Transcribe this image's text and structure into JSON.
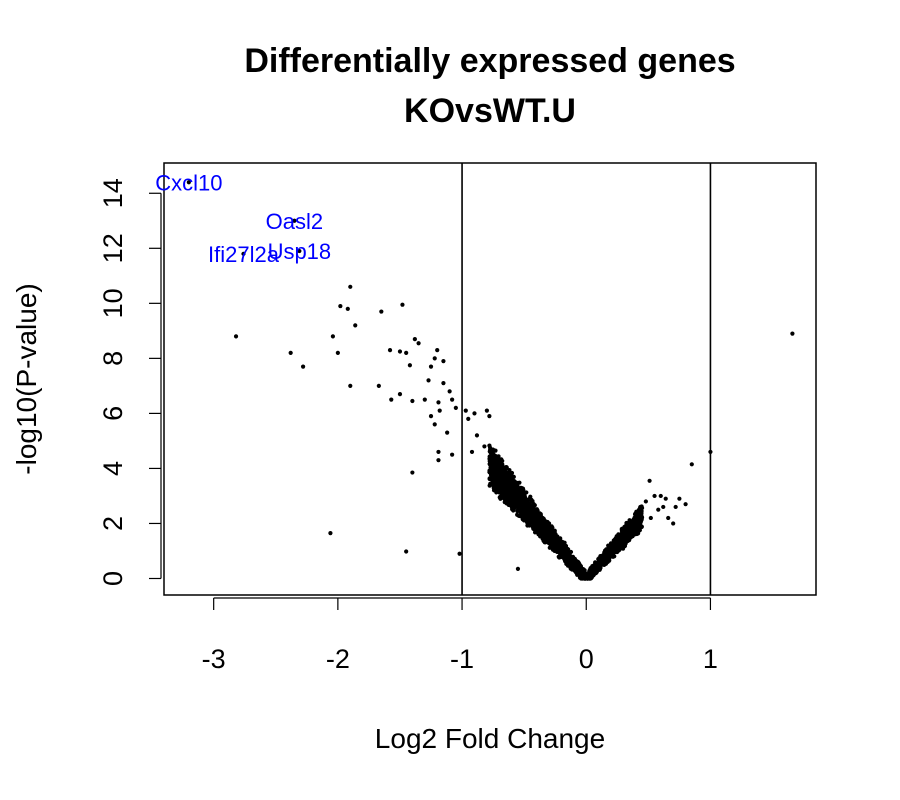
{
  "chart_data": {
    "type": "scatter",
    "title": "Differentially expressed genes",
    "subtitle": "KOvsWT.U",
    "xlabel": "Log2 Fold Change",
    "ylabel": "-log10(P-value)",
    "xlim": [
      -3.4,
      1.85
    ],
    "ylim": [
      -0.6,
      15.1
    ],
    "xticks": [
      -3,
      -2,
      -1,
      0,
      1
    ],
    "yticks": [
      0,
      2,
      4,
      6,
      8,
      10,
      12,
      14
    ],
    "thresholds_x": [
      -1,
      1
    ],
    "grid": false,
    "point_color": "#000000",
    "label_color": "#0000ff",
    "labeled_genes": [
      {
        "name": "Cxcl10",
        "x": -3.2,
        "y": 14.4
      },
      {
        "name": "Oasl2",
        "x": -2.35,
        "y": 13.0
      },
      {
        "name": "Ifi27l2a",
        "x": -2.76,
        "y": 11.8
      },
      {
        "name": "Usp18",
        "x": -2.31,
        "y": 11.9
      }
    ],
    "points": [
      [
        -3.2,
        14.4
      ],
      [
        -2.35,
        13.0
      ],
      [
        -2.76,
        11.8
      ],
      [
        -2.31,
        11.9
      ],
      [
        -1.9,
        10.6
      ],
      [
        -1.98,
        9.9
      ],
      [
        -1.92,
        9.8
      ],
      [
        -1.86,
        9.2
      ],
      [
        -1.48,
        9.95
      ],
      [
        -1.65,
        9.7
      ],
      [
        -2.04,
        8.8
      ],
      [
        -2.82,
        8.8
      ],
      [
        -2.38,
        8.2
      ],
      [
        -2.28,
        7.7
      ],
      [
        -2.0,
        8.2
      ],
      [
        -1.9,
        7.0
      ],
      [
        -1.58,
        8.3
      ],
      [
        -1.5,
        8.25
      ],
      [
        -1.45,
        8.2
      ],
      [
        -1.38,
        8.7
      ],
      [
        -1.35,
        8.55
      ],
      [
        -1.2,
        8.3
      ],
      [
        -1.22,
        8.0
      ],
      [
        -1.15,
        7.9
      ],
      [
        -1.25,
        7.7
      ],
      [
        -1.42,
        7.75
      ],
      [
        -1.15,
        7.1
      ],
      [
        -1.27,
        7.2
      ],
      [
        -1.1,
        6.8
      ],
      [
        -1.19,
        6.4
      ],
      [
        -1.3,
        6.5
      ],
      [
        -1.4,
        6.45
      ],
      [
        -1.57,
        6.5
      ],
      [
        -1.67,
        7.0
      ],
      [
        -1.5,
        6.7
      ],
      [
        -1.08,
        6.5
      ],
      [
        -1.18,
        6.1
      ],
      [
        -1.25,
        5.9
      ],
      [
        -1.22,
        5.6
      ],
      [
        -1.12,
        5.3
      ],
      [
        -1.05,
        6.2
      ],
      [
        -0.97,
        6.1
      ],
      [
        -0.95,
        5.8
      ],
      [
        -0.9,
        6.0
      ],
      [
        -0.8,
        6.1
      ],
      [
        -0.78,
        5.9
      ],
      [
        -0.88,
        5.2
      ],
      [
        -0.82,
        4.8
      ],
      [
        -0.92,
        4.6
      ],
      [
        -1.08,
        4.5
      ],
      [
        -1.19,
        4.6
      ],
      [
        -1.19,
        4.3
      ],
      [
        -1.4,
        3.85
      ],
      [
        -2.06,
        1.65
      ],
      [
        -1.45,
        0.98
      ],
      [
        -1.02,
        0.9
      ],
      [
        -0.55,
        0.35
      ],
      [
        0.85,
        4.15
      ],
      [
        1.0,
        4.6
      ],
      [
        1.66,
        8.9
      ],
      [
        0.51,
        3.55
      ],
      [
        0.55,
        3.0
      ],
      [
        0.6,
        3.0
      ],
      [
        0.62,
        2.6
      ],
      [
        0.66,
        2.2
      ],
      [
        0.7,
        2.0
      ],
      [
        0.75,
        2.9
      ],
      [
        0.8,
        2.7
      ],
      [
        0.52,
        2.2
      ],
      [
        0.58,
        2.5
      ],
      [
        0.64,
        2.9
      ],
      [
        0.72,
        2.6
      ],
      [
        0.48,
        2.8
      ]
    ]
  }
}
